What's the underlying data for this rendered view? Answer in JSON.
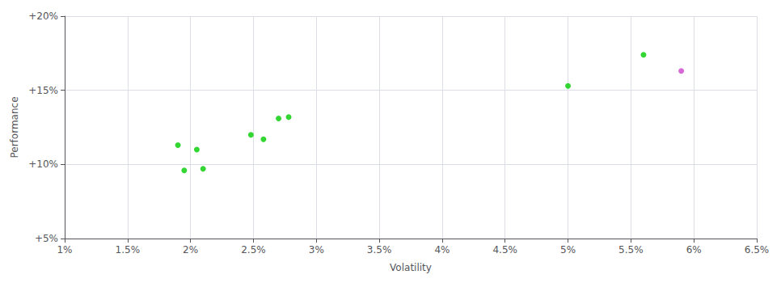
{
  "chart_data": {
    "type": "scatter",
    "xlabel": "Volatility",
    "ylabel": "Performance",
    "xlim": [
      0.01,
      0.065
    ],
    "ylim": [
      0.05,
      0.2
    ],
    "xticks": [
      {
        "value": 0.01,
        "label": "1%"
      },
      {
        "value": 0.015,
        "label": "1.5%"
      },
      {
        "value": 0.02,
        "label": "2%"
      },
      {
        "value": 0.025,
        "label": "2.5%"
      },
      {
        "value": 0.03,
        "label": "3%"
      },
      {
        "value": 0.035,
        "label": "3.5%"
      },
      {
        "value": 0.04,
        "label": "4%"
      },
      {
        "value": 0.045,
        "label": "4.5%"
      },
      {
        "value": 0.05,
        "label": "5%"
      },
      {
        "value": 0.055,
        "label": "5.5%"
      },
      {
        "value": 0.06,
        "label": "6%"
      },
      {
        "value": 0.065,
        "label": "6.5%"
      }
    ],
    "yticks": [
      {
        "value": 0.05,
        "label": "+5%"
      },
      {
        "value": 0.1,
        "label": "+10%"
      },
      {
        "value": 0.15,
        "label": "+15%"
      },
      {
        "value": 0.2,
        "label": "+20%"
      }
    ],
    "grid": true,
    "series": [
      {
        "color": "#00cc00",
        "x": [
          0.0195,
          0.021,
          0.019,
          0.0205,
          0.0248,
          0.0258,
          0.027,
          0.0278,
          0.05,
          0.056
        ],
        "values": [
          0.096,
          0.097,
          0.113,
          0.11,
          0.12,
          0.117,
          0.131,
          0.132,
          0.153,
          0.174
        ]
      },
      {
        "color": "#cc44cc",
        "x": [
          0.059
        ],
        "values": [
          0.163
        ]
      }
    ]
  }
}
